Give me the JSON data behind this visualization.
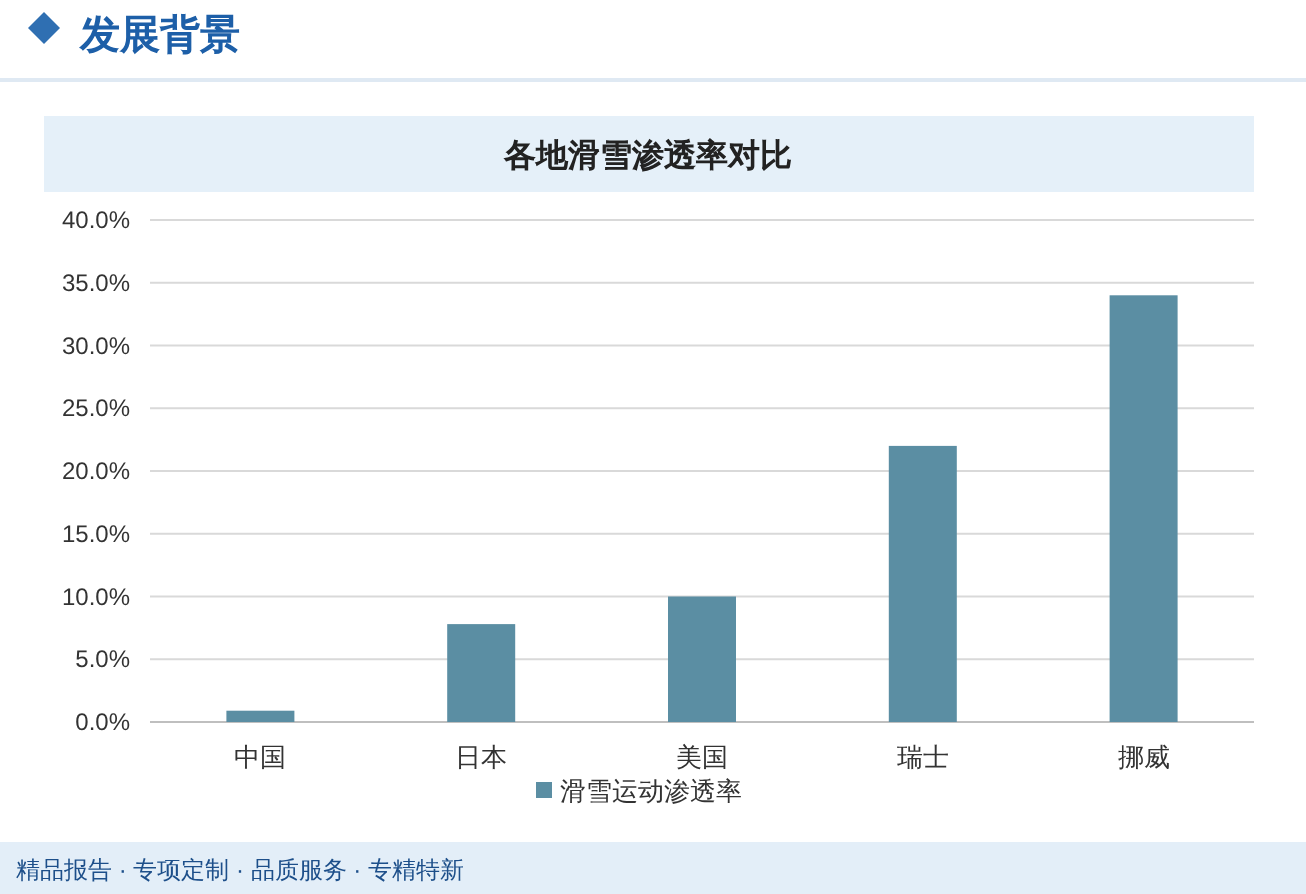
{
  "chart_data": {
    "type": "bar",
    "title": "各地滑雪渗透率对比",
    "categories": [
      "中国",
      "日本",
      "美国",
      "瑞士",
      "挪威"
    ],
    "series": [
      {
        "name": "滑雪运动渗透率",
        "color": "#5b8ea3",
        "values": [
          0.9,
          7.8,
          10.0,
          22.0,
          34.0
        ]
      }
    ],
    "ylim": [
      0,
      40
    ],
    "yticks": [
      {
        "value": 0,
        "label": "0.0%"
      },
      {
        "value": 5,
        "label": "5.0%"
      },
      {
        "value": 10,
        "label": "10.0%"
      },
      {
        "value": 15,
        "label": "15.0%"
      },
      {
        "value": 20,
        "label": "20.0%"
      },
      {
        "value": 25,
        "label": "25.0%"
      },
      {
        "value": 30,
        "label": "30.0%"
      },
      {
        "value": 35,
        "label": "35.0%"
      },
      {
        "value": 40,
        "label": "40.0%"
      }
    ],
    "grid": "y",
    "legend": "bottom",
    "annotations": [
      "发展背景",
      "精品报告 · 专项定制 · 品质服务 · 专精特新"
    ]
  }
}
